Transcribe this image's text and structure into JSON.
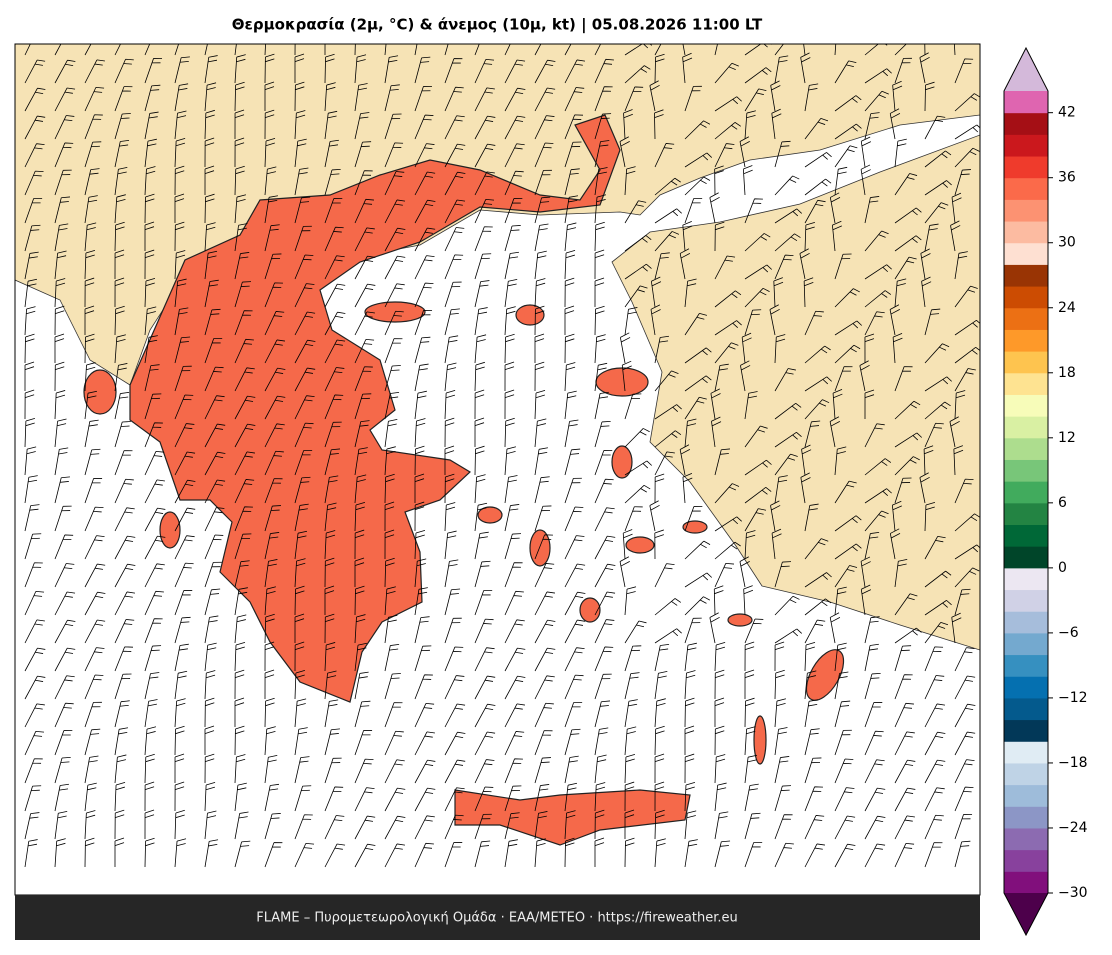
{
  "title": "Θερμοκρασία (2μ, °C) & άνεμος (10μ, kt)  |  05.08.2026 11:00 LT",
  "footer": "FLAME – Πυρομετεωρολογική Ομάδα · ΕΑΑ/METEO · https://fireweather.eu",
  "colorbar": {
    "lim": [
      -30,
      44
    ],
    "ticks": [
      {
        "value": -30,
        "label": "−30"
      },
      {
        "value": -24,
        "label": "−24"
      },
      {
        "value": -18,
        "label": "−18"
      },
      {
        "value": -12,
        "label": "−12"
      },
      {
        "value": -6,
        "label": "−6"
      },
      0,
      6,
      12,
      18,
      24,
      30,
      36,
      42
    ],
    "colors": [
      "#810f7c",
      "#88419d",
      "#8c6bb1",
      "#8c96c6",
      "#9ebcda",
      "#bfd3e6",
      "#e0ecf4",
      "#023858",
      "#045a8d",
      "#0570b0",
      "#3690c0",
      "#74a9cf",
      "#a6bddb",
      "#d0d1e6",
      "#ece7f2",
      "#004529",
      "#006837",
      "#238443",
      "#41ab5d",
      "#78c679",
      "#addd8e",
      "#d9f0a3",
      "#f7fcb9",
      "#fee391",
      "#fec44f",
      "#fe9929",
      "#ec7014",
      "#cc4c02",
      "#993404",
      "#fee0d2",
      "#fcbba1",
      "#fc9272",
      "#fb6a4a",
      "#ef3b2c",
      "#cb181d",
      "#a50f15",
      "#df65b0"
    ],
    "under": "#4d004b",
    "over": "#d4b9da"
  }
}
